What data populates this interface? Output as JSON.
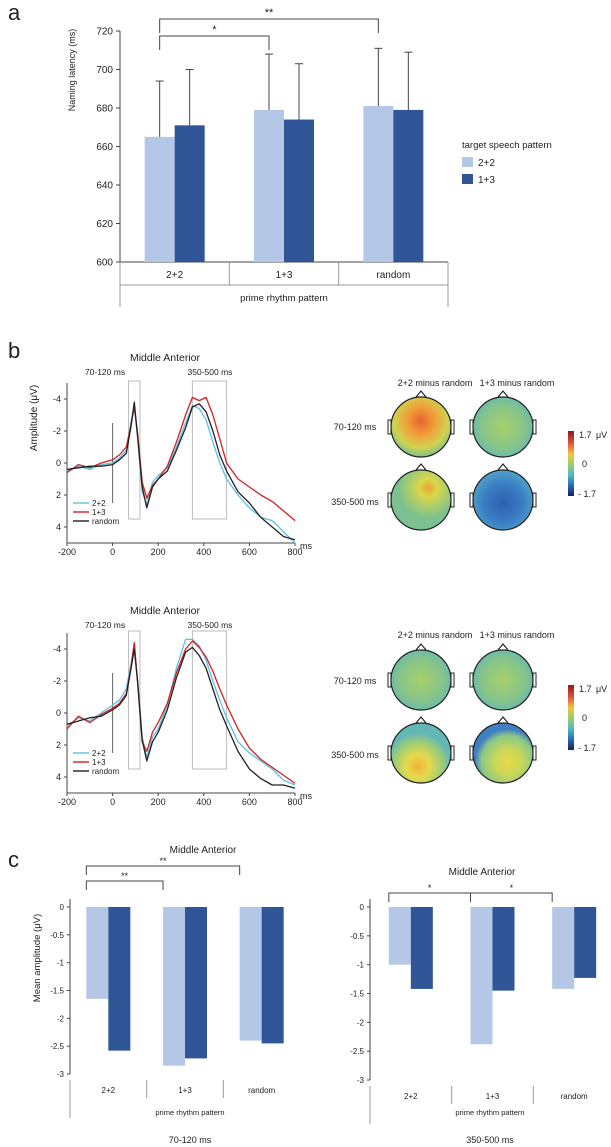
{
  "panel_labels": {
    "a": "a",
    "b": "b",
    "c": "c"
  },
  "colors": {
    "light": "#b4c7e7",
    "dark": "#2f5597",
    "black": "#222222",
    "red": "#d42020",
    "cyan": "#5bc0e8"
  },
  "panel_a": {
    "chart_data": {
      "type": "bar",
      "title": "",
      "ylabel": "Naming latency (ms)",
      "xlabel": "prime rhythm pattern",
      "categories": [
        "2+2",
        "1+3",
        "random"
      ],
      "yticks": [
        "600",
        "620",
        "640",
        "660",
        "680",
        "700",
        "720"
      ],
      "ylim": [
        600,
        720
      ],
      "series": [
        {
          "name": "2+2",
          "values": [
            665,
            679,
            681
          ],
          "errors": [
            29,
            29,
            30
          ]
        },
        {
          "name": "1+3",
          "values": [
            671,
            674,
            679
          ],
          "errors": [
            29,
            29,
            30
          ]
        }
      ],
      "legend_title": "target speech pattern",
      "legend_position": "right",
      "significance": [
        {
          "from": "2+2",
          "to": "1+3",
          "label": "*"
        },
        {
          "from": "2+2",
          "to": "random",
          "label": "**"
        }
      ]
    }
  },
  "panel_b": {
    "erp_plots": [
      {
        "title": "Middle Anterior",
        "ylabel": "Amplitude (μV)",
        "windows": [
          "70-120 ms",
          "350-500 ms"
        ],
        "yticks": [
          "-4",
          "-2",
          "0",
          "2",
          "4"
        ],
        "xticks": [
          "-200",
          "0",
          "200",
          "400",
          "600",
          "800"
        ],
        "xunit": "ms",
        "legend": [
          "2+2",
          "1+3",
          "random"
        ],
        "chart_data": {
          "type": "line",
          "x": [
            -200,
            -150,
            -100,
            -50,
            0,
            30,
            60,
            80,
            95,
            110,
            130,
            150,
            175,
            200,
            240,
            280,
            320,
            350,
            380,
            410,
            440,
            470,
            500,
            550,
            600,
            650,
            700,
            750,
            800
          ],
          "series": [
            {
              "name": "2+2",
              "values": [
                0.5,
                0.2,
                0.4,
                0.1,
                0.0,
                -0.3,
                -0.8,
                -2.5,
                -3.6,
                -1.5,
                1.8,
                2.6,
                1.2,
                0.8,
                0.3,
                -1.0,
                -2.5,
                -3.6,
                -3.4,
                -2.7,
                -1.3,
                0.0,
                1.0,
                2.0,
                2.8,
                3.4,
                3.6,
                4.3,
                5.0
              ]
            },
            {
              "name": "1+3",
              "values": [
                0.6,
                0.1,
                0.3,
                0.0,
                -0.2,
                -0.5,
                -1.0,
                -2.3,
                -3.5,
                -1.8,
                1.2,
                2.2,
                1.4,
                1.0,
                0.2,
                -1.3,
                -3.0,
                -4.1,
                -3.9,
                -4.1,
                -3.0,
                -1.5,
                0.0,
                1.0,
                1.5,
                2.0,
                2.4,
                3.0,
                3.6
              ]
            },
            {
              "name": "random",
              "values": [
                0.4,
                0.3,
                0.2,
                0.2,
                0.1,
                -0.2,
                -0.6,
                -2.2,
                -3.8,
                -1.6,
                1.5,
                2.8,
                1.5,
                1.0,
                0.5,
                -0.8,
                -2.2,
                -3.5,
                -3.7,
                -3.2,
                -2.0,
                -0.5,
                0.5,
                1.8,
                2.5,
                3.4,
                4.0,
                4.6,
                4.8
              ]
            }
          ],
          "ylim": [
            -5,
            5
          ],
          "xlim": [
            -200,
            800
          ],
          "y_inverted": true
        },
        "topo_row_labels": [
          "70-120 ms",
          "350-500 ms"
        ],
        "topo_col_labels": [
          "2+2 minus random",
          "1+3 minus random"
        ],
        "colorbar": {
          "max": "1.7",
          "mid": "0",
          "min": "- 1.7",
          "unit": "μV"
        }
      },
      {
        "title": "Middle Anterior",
        "ylabel": "",
        "windows": [
          "70-120 ms",
          "350-500 ms"
        ],
        "yticks": [
          "-4",
          "-2",
          "0",
          "2",
          "4"
        ],
        "xticks": [
          "-200",
          "0",
          "200",
          "400",
          "600",
          "800"
        ],
        "xunit": "ms",
        "legend": [
          "2+2",
          "1+3",
          "random"
        ],
        "chart_data": {
          "type": "line",
          "x": [
            -200,
            -150,
            -100,
            -50,
            0,
            30,
            60,
            80,
            95,
            110,
            130,
            150,
            175,
            200,
            240,
            280,
            320,
            350,
            380,
            410,
            440,
            470,
            500,
            550,
            600,
            650,
            700,
            750,
            800
          ],
          "series": [
            {
              "name": "2+2",
              "values": [
                0.8,
                0.3,
                0.5,
                0.0,
                -0.5,
                -0.8,
                -1.5,
                -3.0,
                -4.2,
                -2.0,
                1.5,
                2.8,
                1.5,
                1.0,
                -0.5,
                -2.8,
                -4.6,
                -4.6,
                -4.2,
                -3.3,
                -2.0,
                -0.8,
                0.3,
                1.8,
                2.5,
                3.0,
                3.5,
                4.2,
                4.5
              ]
            },
            {
              "name": "1+3",
              "values": [
                1.0,
                0.2,
                0.6,
                0.1,
                -0.3,
                -0.6,
                -1.2,
                -2.8,
                -4.4,
                -1.8,
                1.8,
                2.4,
                1.2,
                0.6,
                -0.6,
                -2.5,
                -4.0,
                -4.5,
                -4.1,
                -3.5,
                -2.6,
                -1.5,
                -0.5,
                1.0,
                2.2,
                2.9,
                3.4,
                3.9,
                4.4
              ]
            },
            {
              "name": "random",
              "values": [
                0.7,
                0.5,
                0.3,
                0.2,
                -0.2,
                -0.5,
                -1.1,
                -2.7,
                -4.0,
                -1.9,
                1.7,
                3.0,
                1.8,
                1.2,
                -0.2,
                -2.2,
                -3.8,
                -4.1,
                -3.6,
                -2.8,
                -1.5,
                -0.2,
                0.8,
                2.4,
                3.5,
                4.1,
                4.5,
                4.5,
                4.7
              ]
            }
          ],
          "ylim": [
            -5,
            5
          ],
          "xlim": [
            -200,
            800
          ],
          "y_inverted": true
        },
        "topo_row_labels": [
          "70-120 ms",
          "350-500 ms"
        ],
        "topo_col_labels": [
          "2+2 minus random",
          "1+3 minus random"
        ],
        "colorbar": {
          "max": "1.7",
          "mid": "0",
          "min": "- 1.7",
          "unit": "μV"
        }
      }
    ]
  },
  "panel_c": {
    "charts": [
      {
        "chart_data": {
          "type": "bar",
          "title": "Middle Anterior",
          "ylabel": "Mean amplitude (μV)",
          "xlabel": "prime rhythm pattern",
          "caption": "70-120 ms",
          "categories": [
            "2+2",
            "1+3",
            "random"
          ],
          "yticks": [
            "0",
            "-0.5",
            "-1",
            "-1.5",
            "-2",
            "-2.5",
            "-3"
          ],
          "ylim": [
            -3,
            0
          ],
          "series": [
            {
              "name": "2+2",
              "values": [
                -1.65,
                -2.85,
                -2.4
              ]
            },
            {
              "name": "1+3",
              "values": [
                -2.58,
                -2.72,
                -2.45
              ]
            }
          ],
          "significance": [
            {
              "from": "2+2",
              "to": "1+3",
              "label": "**"
            },
            {
              "from": "2+2",
              "to": "random",
              "label": "**"
            }
          ]
        }
      },
      {
        "chart_data": {
          "type": "bar",
          "title": "Middle Anterior",
          "ylabel": "",
          "xlabel": "prime rhythm pattern",
          "caption": "350-500 ms",
          "categories": [
            "2+2",
            "1+3",
            "random"
          ],
          "yticks": [
            "0",
            "-0.5",
            "-1",
            "-1.5",
            "-2",
            "-2.5",
            "-3"
          ],
          "ylim": [
            -3,
            0
          ],
          "series": [
            {
              "name": "2+2",
              "values": [
                -1.0,
                -2.38,
                -1.42
              ]
            },
            {
              "name": "1+3",
              "values": [
                -1.42,
                -1.45,
                -1.23
              ]
            }
          ],
          "significance": [
            {
              "from": "2+2",
              "to": "1+3",
              "label": "*"
            },
            {
              "from": "1+3",
              "to": "random",
              "label": "*"
            }
          ]
        }
      }
    ]
  }
}
